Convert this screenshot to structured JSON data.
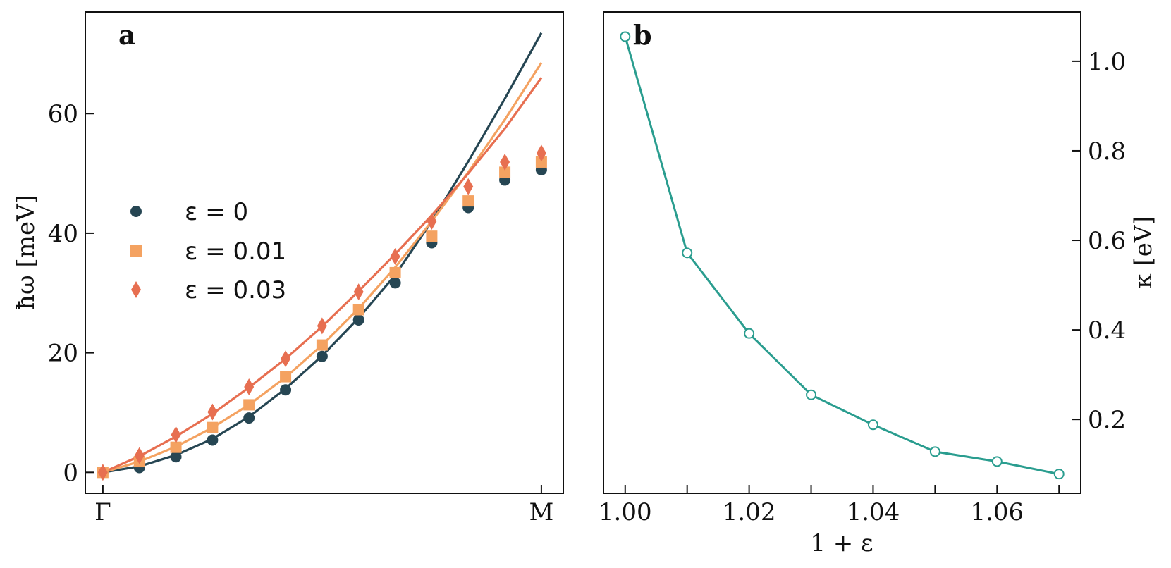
{
  "chart_data": [
    {
      "type": "line",
      "panel_label": "a",
      "ylabel": "ħω [meV]",
      "xlabel": "",
      "x_tick_labels": [
        "Γ",
        "M"
      ],
      "x": [
        0,
        0.0833,
        0.1667,
        0.25,
        0.3333,
        0.4167,
        0.5,
        0.5833,
        0.6667,
        0.75,
        0.8333,
        0.9167,
        1.0
      ],
      "xlim": [
        -0.04,
        1.05
      ],
      "ylim": [
        -3.5,
        77
      ],
      "yticks": [
        0,
        20,
        40,
        60
      ],
      "legend_position": "center-left",
      "series": [
        {
          "name": "ε = 0",
          "color": "#264653",
          "marker": "circle",
          "points": [
            0,
            0.8,
            2.6,
            5.4,
            9.1,
            13.8,
            19.4,
            25.5,
            31.7,
            38.4,
            44.3,
            48.9,
            50.6
          ],
          "fit_x": [
            0,
            0.0833,
            0.1667,
            0.25,
            0.3333,
            0.4167,
            0.5,
            0.5833,
            0.6667,
            0.75,
            0.8333,
            0.9167,
            1.0
          ],
          "fit_y": [
            0,
            1.0,
            2.9,
            5.6,
            9.3,
            14.0,
            19.5,
            25.8,
            33.0,
            42.0,
            52.0,
            62.5,
            73.5
          ]
        },
        {
          "name": "ε = 0.01",
          "color": "#f4a261",
          "marker": "square",
          "points": [
            0,
            1.8,
            4.2,
            7.5,
            11.3,
            16.0,
            21.3,
            27.2,
            33.4,
            39.5,
            45.4,
            50.2,
            51.9
          ],
          "fit_x": [
            0,
            0.0833,
            0.1667,
            0.25,
            0.3333,
            0.4167,
            0.5,
            0.5833,
            0.6667,
            0.75,
            0.8333,
            0.9167,
            1.0
          ],
          "fit_y": [
            0,
            1.8,
            4.3,
            7.5,
            11.3,
            15.9,
            21.3,
            27.4,
            34.3,
            42.0,
            50.2,
            59.0,
            68.5
          ]
        },
        {
          "name": "ε = 0.03",
          "color": "#e76f51",
          "marker": "diamond",
          "points": [
            0,
            2.8,
            6.3,
            10.1,
            14.3,
            19.0,
            24.5,
            30.2,
            36.1,
            42.0,
            47.8,
            51.9,
            53.4
          ],
          "fit_x": [
            0,
            0.0833,
            0.1667,
            0.25,
            0.3333,
            0.4167,
            0.5,
            0.5833,
            0.6667,
            0.75,
            0.8333,
            0.9167,
            1.0
          ],
          "fit_y": [
            0,
            2.7,
            6.0,
            9.8,
            14.2,
            19.0,
            24.4,
            30.3,
            36.5,
            43.0,
            50.0,
            57.5,
            66.0
          ]
        }
      ]
    },
    {
      "type": "line",
      "panel_label": "b",
      "xlabel": "1 + ε",
      "ylabel": "κ [eV]",
      "y_axis_side": "right",
      "x": [
        1.0,
        1.01,
        1.02,
        1.03,
        1.04,
        1.05,
        1.06,
        1.07
      ],
      "xticks": [
        1.0,
        1.01,
        1.02,
        1.03,
        1.04,
        1.05,
        1.06,
        1.07
      ],
      "xtick_labels": [
        "1.00",
        "",
        "1.02",
        "",
        "1.04",
        "",
        "1.06",
        ""
      ],
      "xlim": [
        0.9965,
        1.0735
      ],
      "ylim": [
        0.035,
        1.11
      ],
      "yticks": [
        0.2,
        0.4,
        0.6,
        0.8,
        1.0
      ],
      "ytick_labels": [
        "0.2",
        "0.4",
        "0.6",
        "0.8",
        "1.0"
      ],
      "series": [
        {
          "name": "κ",
          "color": "#2a9d8f",
          "marker": "open-circle",
          "values": [
            1.055,
            0.572,
            0.392,
            0.255,
            0.188,
            0.128,
            0.106,
            0.078
          ]
        }
      ]
    }
  ]
}
